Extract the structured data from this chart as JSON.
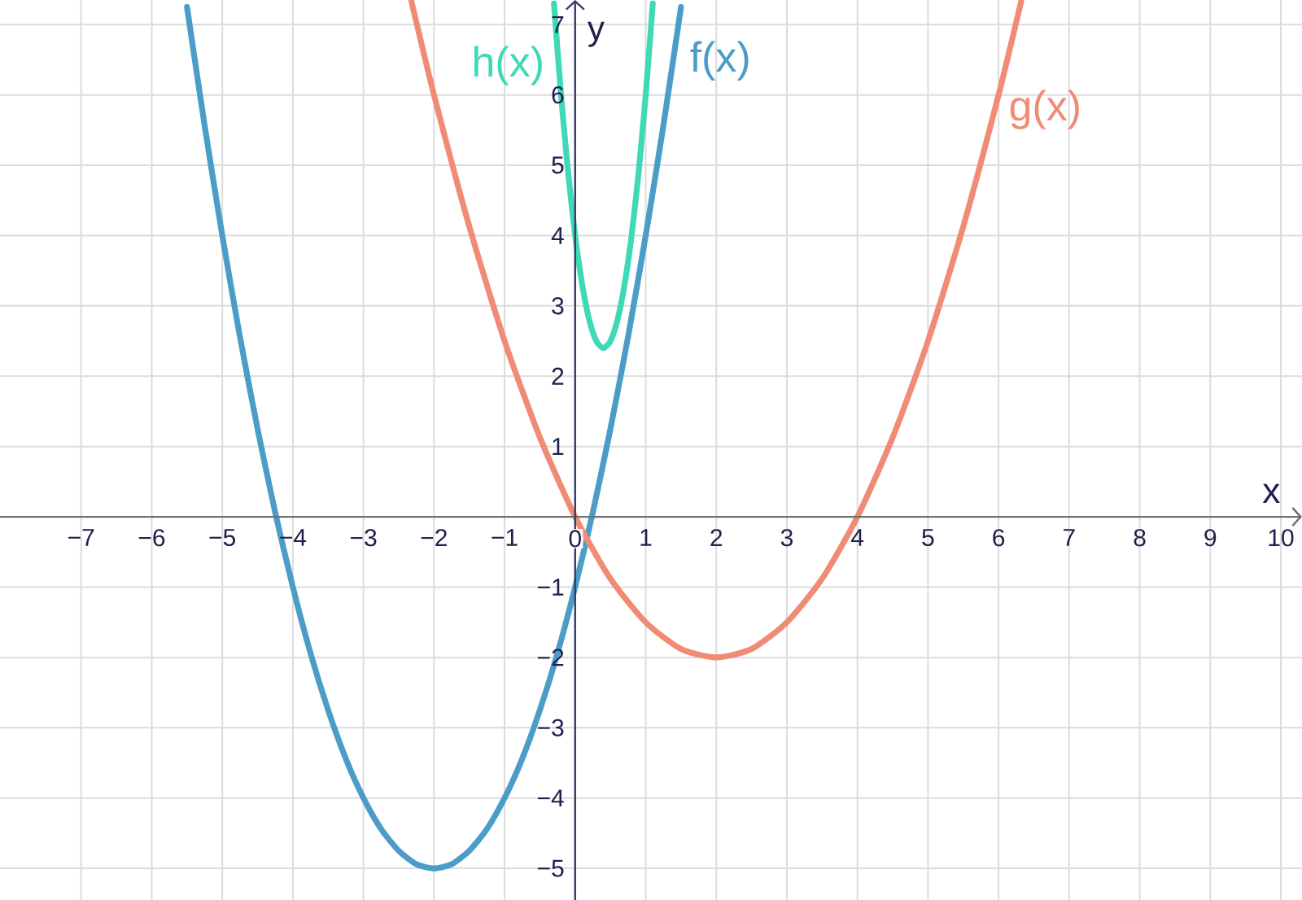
{
  "chart_data": {
    "type": "line",
    "xlabel": "x",
    "ylabel": "y",
    "xlim": [
      -8.15,
      10.3
    ],
    "ylim": [
      -5.45,
      7.35
    ],
    "xticks": [
      {
        "value": -7,
        "label": "−7"
      },
      {
        "value": -6,
        "label": "−6"
      },
      {
        "value": -5,
        "label": "−5"
      },
      {
        "value": -4,
        "label": "−4"
      },
      {
        "value": -3,
        "label": "−3"
      },
      {
        "value": -2,
        "label": "−2"
      },
      {
        "value": -1,
        "label": "−1"
      },
      0,
      1,
      2,
      3,
      4,
      5,
      6,
      7,
      8,
      9,
      10
    ],
    "yticks": [
      {
        "value": -5,
        "label": "−5"
      },
      {
        "value": -4,
        "label": "−4"
      },
      {
        "value": -3,
        "label": "−3"
      },
      {
        "value": -2,
        "label": "−2"
      },
      {
        "value": -1,
        "label": "−1"
      },
      1,
      2,
      3,
      4,
      5,
      6,
      7
    ],
    "grid": true,
    "line_style": "solid",
    "series": [
      {
        "name": "f(x)",
        "color": "#4b9dc8",
        "x": [
          -5.5,
          -5.25,
          -5,
          -4.75,
          -4.5,
          -4.25,
          -4,
          -3.75,
          -3.5,
          -3.25,
          -3,
          -2.75,
          -2.5,
          -2.25,
          -2,
          -1.75,
          -1.5,
          -1.25,
          -1,
          -0.75,
          -0.5,
          -0.25,
          0,
          0.25,
          0.5,
          0.75,
          1,
          1.25,
          1.5
        ],
        "values": [
          7.25,
          5.56,
          4,
          2.56,
          1.25,
          0.06,
          -1,
          -1.94,
          -2.75,
          -3.44,
          -4,
          -4.44,
          -4.75,
          -4.94,
          -5,
          -4.94,
          -4.75,
          -4.44,
          -4,
          -3.44,
          -2.75,
          -1.94,
          -1,
          0.06,
          1.25,
          2.56,
          4,
          5.56,
          7.25
        ]
      },
      {
        "name": "g(x)",
        "color": "#f08b75",
        "x": [
          -2.32,
          -2,
          -1.5,
          -1,
          -0.5,
          0,
          0.5,
          1,
          1.5,
          2,
          2.5,
          3,
          3.5,
          4,
          4.5,
          5,
          5.5,
          6,
          6.32
        ],
        "values": [
          7.33,
          6,
          4.13,
          2.5,
          1.13,
          0,
          -0.88,
          -1.5,
          -1.88,
          -2,
          -1.88,
          -1.5,
          -0.88,
          0,
          1.13,
          2.5,
          4.13,
          6,
          7.33
        ]
      },
      {
        "name": "h(x)",
        "color": "#3fd9b6",
        "x": [
          -0.3,
          -0.2,
          -0.1,
          0,
          0.1,
          0.2,
          0.3,
          0.4,
          0.5,
          0.6,
          0.7,
          0.8,
          0.9,
          1,
          1.1
        ],
        "values": [
          7.3,
          6,
          4.9,
          4,
          3.3,
          2.8,
          2.5,
          2.4,
          2.5,
          2.8,
          3.3,
          4,
          4.9,
          6,
          7.3
        ]
      }
    ]
  }
}
